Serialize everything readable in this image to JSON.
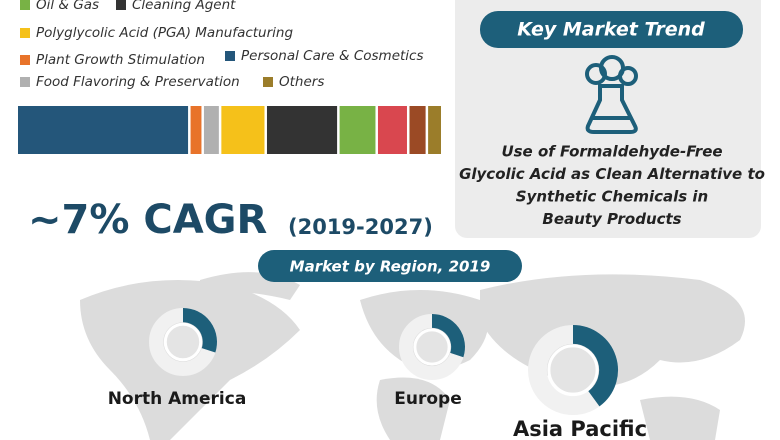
{
  "legend": [
    {
      "label": "Oil & Gas",
      "color": "#78b245"
    },
    {
      "label": "Cleaning Agent",
      "color": "#333333"
    },
    {
      "label": "Polyglycolic Acid (PGA) Manufacturing",
      "color": "#f5c11a"
    },
    {
      "label": "Plant Growth Stimulation",
      "color": "#e8732a"
    },
    {
      "label": "Personal Care & Cosmetics",
      "color": "#24567a"
    },
    {
      "label": "Food Flavoring & Preservation",
      "color": "#b0b0b0"
    },
    {
      "label": "Others",
      "color": "#9b7d2a"
    }
  ],
  "share_bar": {
    "segments": [
      {
        "color": "#24567a",
        "value": 42.2
      },
      {
        "color": "#e8732a",
        "value": 2.7
      },
      {
        "color": "#b0b0b0",
        "value": 3.7
      },
      {
        "color": "#f5c11a",
        "value": 10.7
      },
      {
        "color": "#333333",
        "value": 17.4
      },
      {
        "color": "#78b245",
        "value": 8.9
      },
      {
        "color": "#d9474f",
        "value": 7.2
      },
      {
        "color": "#9b4a25",
        "value": 4.0
      },
      {
        "color": "#9b7d2a",
        "value": 3.2
      }
    ]
  },
  "cagr": {
    "value": "~7% CAGR",
    "period": "(2019-2027)"
  },
  "key_trend": {
    "title": "Key Market Trend",
    "lines": [
      "Use of Formaldehyde-Free",
      "Glycolic Acid as Clean Alternative to",
      "Synthetic Chemicals in",
      "Beauty Products"
    ]
  },
  "region": {
    "title": "Market by Region, 2019",
    "regions": [
      {
        "label": "North America",
        "value": 30
      },
      {
        "label": "Europe",
        "value": 30
      },
      {
        "label": "Asia Pacific",
        "value": 40
      }
    ]
  }
}
